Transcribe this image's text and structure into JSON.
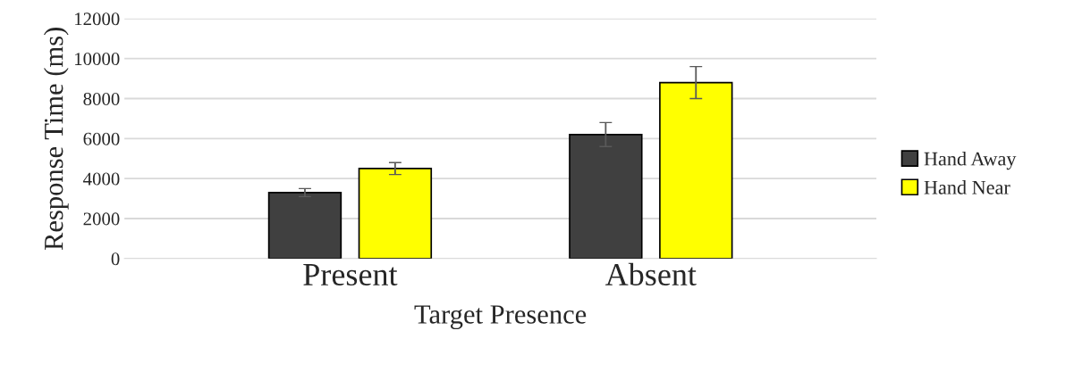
{
  "chart_data": {
    "type": "bar",
    "xlabel": "Target Presence",
    "ylabel": "Response Time (ms)",
    "categories": [
      "Present",
      "Absent"
    ],
    "series": [
      {
        "name": "Hand Away",
        "color": "#404040",
        "values": [
          3300,
          6200
        ],
        "errors": [
          200,
          600
        ]
      },
      {
        "name": "Hand Near",
        "color": "#ffff00",
        "values": [
          4500,
          8800
        ],
        "errors": [
          300,
          800
        ]
      }
    ],
    "ylim": [
      0,
      12000
    ],
    "yticks": [
      0,
      2000,
      4000,
      6000,
      8000,
      10000,
      12000
    ],
    "grid": "y",
    "legend": "right"
  }
}
